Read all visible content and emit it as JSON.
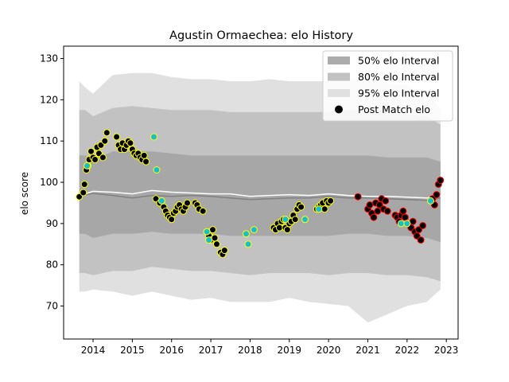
{
  "chart_data": {
    "type": "line",
    "title": "Agustin Ormaechea: elo History",
    "xlabel": "",
    "ylabel": "elo score",
    "xlim": [
      2013.25,
      2023.3
    ],
    "ylim": [
      62,
      133
    ],
    "x_ticks": [
      2014,
      2015,
      2016,
      2017,
      2018,
      2019,
      2020,
      2021,
      2022,
      2023
    ],
    "y_ticks": [
      70,
      80,
      90,
      100,
      110,
      120,
      130
    ],
    "legend": {
      "position": "top-right",
      "entries": [
        "50% elo Interval",
        "80% elo Interval",
        "95% elo Interval",
        "Post Match elo"
      ]
    },
    "colors": {
      "band50": "#9e9e9e",
      "band80": "#c2c2c2",
      "band95": "#e0e0e0",
      "mean_line": "#ffffff",
      "median_line": "#808080",
      "marker_fill": "#000000",
      "edge_yellow": "#ffff00",
      "edge_red": "#ff0000",
      "cyan_fill": "#17becf"
    },
    "bands": {
      "x": [
        2013.65,
        2013.8,
        2014.0,
        2014.5,
        2015.0,
        2015.5,
        2016.0,
        2016.5,
        2017.0,
        2017.5,
        2018.0,
        2018.5,
        2019.0,
        2019.5,
        2020.0,
        2020.5,
        2021.0,
        2021.5,
        2022.0,
        2022.5,
        2022.85
      ],
      "p95_upper": [
        124.5,
        123,
        121.5,
        126,
        126.5,
        126.5,
        125.5,
        125,
        125,
        124.5,
        124.5,
        125,
        124.5,
        124.5,
        124.5,
        125,
        124.5,
        124,
        123.5,
        121.5,
        118
      ],
      "p80_upper": [
        117.5,
        117.5,
        116,
        118,
        118.5,
        118,
        117.5,
        117.5,
        117.5,
        117,
        117,
        117,
        117,
        117,
        117,
        117.5,
        117,
        116.5,
        116.5,
        116,
        114
      ],
      "p50_upper": [
        106.5,
        106.5,
        105.5,
        107.5,
        107.5,
        107.5,
        107,
        106.5,
        106.5,
        106.5,
        106.5,
        106.5,
        106.5,
        106.5,
        106.5,
        106.5,
        106.5,
        106,
        106,
        106,
        105
      ],
      "p50_lower": [
        87.5,
        87.5,
        86.5,
        87.5,
        87.5,
        88,
        87.5,
        87.5,
        87.5,
        87,
        87,
        87,
        87,
        87,
        87,
        87.5,
        87.5,
        87,
        87,
        86.5,
        85.5
      ],
      "p80_lower": [
        78,
        78,
        77.5,
        78.5,
        78.5,
        79.5,
        79,
        78.5,
        78.5,
        78,
        77.5,
        78,
        78,
        78,
        77.5,
        78,
        78,
        77.5,
        77.5,
        77,
        76
      ],
      "p95_lower": [
        73.5,
        73.5,
        74,
        73.5,
        72.5,
        73.5,
        72.5,
        71.5,
        72,
        71,
        71,
        71,
        72,
        71,
        70.5,
        70,
        66,
        68,
        70,
        71,
        74
      ],
      "mean": [
        96.5,
        97.2,
        97.8,
        97.6,
        97.2,
        98,
        97.6,
        97.4,
        97.2,
        97.2,
        96.6,
        96.8,
        97,
        96.8,
        97.2,
        96.8,
        96.6,
        96.6,
        96.4,
        96.2,
        96.8
      ],
      "median": [
        96.4,
        97,
        97.3,
        96.8,
        96.2,
        96.8,
        96.6,
        96.8,
        96.6,
        96.2,
        95.8,
        96,
        96.2,
        96.2,
        96.6,
        96.2,
        96.2,
        96,
        95.8,
        95.6,
        96.2
      ]
    },
    "series": [
      {
        "marker": "yellow-edge",
        "x": [
          2013.65,
          2013.75,
          2013.78,
          2013.83,
          2013.87,
          2013.9,
          2013.95,
          2014.0,
          2014.05,
          2014.1,
          2014.15,
          2014.2,
          2014.25,
          2014.3,
          2014.35,
          2014.6,
          2014.65,
          2014.7,
          2014.75,
          2014.8,
          2014.85,
          2014.9,
          2014.95,
          2015.0,
          2015.05,
          2015.1,
          2015.15,
          2015.2,
          2015.25,
          2015.3,
          2015.35,
          2015.6,
          2015.7,
          2015.8,
          2015.85,
          2015.9,
          2015.95,
          2016.0,
          2016.05,
          2016.1,
          2016.15,
          2016.2,
          2016.25,
          2016.3,
          2016.35,
          2016.4,
          2016.6,
          2016.65,
          2016.7,
          2016.8,
          2016.9,
          2016.95,
          2017.0,
          2017.05,
          2017.1,
          2017.15,
          2017.25,
          2017.3,
          2017.35,
          2018.6,
          2018.65,
          2018.7,
          2018.75,
          2018.8,
          2018.85,
          2018.9,
          2018.95,
          2019.0,
          2019.05,
          2019.1,
          2019.15,
          2019.2,
          2019.25,
          2019.3,
          2019.7,
          2019.75,
          2019.8,
          2019.85,
          2019.9,
          2019.95,
          2020.0,
          2020.05
        ],
        "y": [
          96.5,
          97.5,
          99.5,
          103,
          104,
          105.5,
          107.5,
          106,
          105.5,
          108.5,
          107,
          109,
          106,
          110,
          112,
          111,
          109,
          108,
          109.5,
          108,
          109,
          110,
          109.5,
          108,
          107,
          106.5,
          107,
          106,
          105.5,
          106.5,
          105,
          96,
          95,
          94,
          93,
          92,
          91.5,
          91,
          92.5,
          93,
          94,
          94.5,
          93.5,
          93,
          94,
          95,
          95,
          94.5,
          93.5,
          93,
          88,
          87,
          86,
          88.5,
          86.5,
          85,
          83,
          82.5,
          83.5,
          89,
          88.5,
          90,
          89,
          90.5,
          91,
          89,
          88.5,
          90,
          90.5,
          92,
          91,
          93.5,
          94.5,
          94,
          93.5,
          94,
          94.5,
          95,
          93.5,
          95.5,
          95,
          95.5
        ]
      },
      {
        "marker": "red-edge",
        "x": [
          2020.75,
          2021.0,
          2021.05,
          2021.1,
          2021.15,
          2021.2,
          2021.25,
          2021.3,
          2021.35,
          2021.4,
          2021.45,
          2021.5,
          2021.7,
          2021.75,
          2021.8,
          2021.85,
          2021.9,
          2021.95,
          2022.0,
          2022.1,
          2022.15,
          2022.2,
          2022.25,
          2022.3,
          2022.35,
          2022.4,
          2022.65,
          2022.7,
          2022.75,
          2022.8,
          2022.85
        ],
        "y": [
          96.5,
          93.5,
          94.5,
          92.5,
          91.5,
          95,
          93,
          94.5,
          96,
          93.5,
          95.5,
          93,
          92,
          91.5,
          90.5,
          92,
          93,
          91.5,
          90,
          89,
          90.5,
          88,
          87,
          88.5,
          86,
          89.5,
          96,
          94.5,
          97,
          99.5,
          100.5
        ]
      },
      {
        "marker": "cyan",
        "x": [
          2013.85,
          2015.55,
          2015.62,
          2015.75,
          2016.9,
          2016.95,
          2017.9,
          2017.95,
          2018.1,
          2018.9,
          2019.4,
          2019.75,
          2021.85,
          2022.0,
          2022.6
        ],
        "y": [
          104,
          111,
          103,
          95.5,
          88,
          86,
          87.5,
          85,
          88.5,
          91,
          91,
          93.5,
          90,
          90,
          95.5
        ]
      }
    ]
  }
}
